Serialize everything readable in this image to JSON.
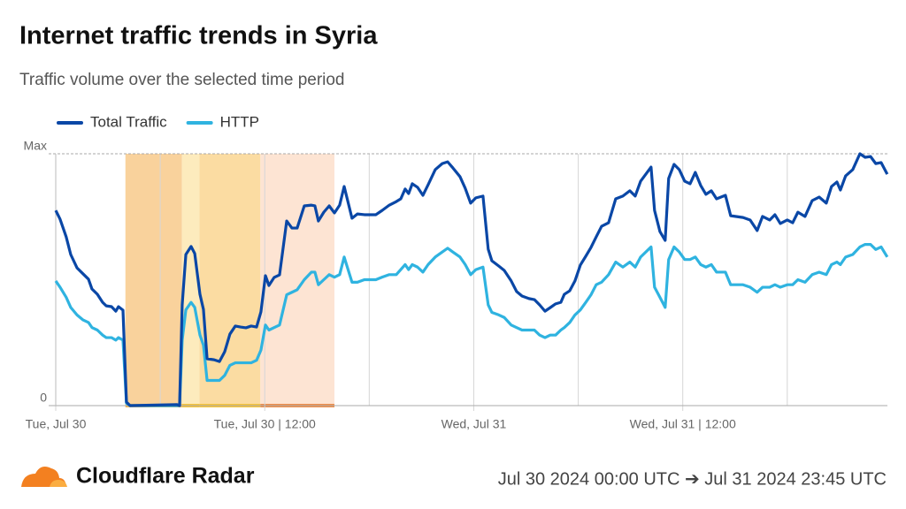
{
  "chart_data": {
    "type": "line",
    "title": "Internet traffic trends in Syria",
    "subtitle": "Traffic volume over the selected time period",
    "brand": "Cloudflare Radar",
    "date_range": "Jul 30 2024 00:00 UTC ➔ Jul 31 2024 23:45 UTC",
    "legend": "top-left",
    "xlim": [
      0,
      47.75
    ],
    "xticks": [
      {
        "value": 0,
        "label": "Tue, Jul 30"
      },
      {
        "value": 12,
        "label": "Tue, Jul 30 | 12:00"
      },
      {
        "value": 24,
        "label": "Wed, Jul 31"
      },
      {
        "value": 36,
        "label": "Wed, Jul 31 | 12:00"
      }
    ],
    "xminorticks": [
      6,
      18,
      30,
      42
    ],
    "ylim": [
      0,
      100
    ],
    "yticks": [
      0,
      {
        "value": 100,
        "label": "Max"
      }
    ],
    "shaded_ranges": [
      {
        "start": 4,
        "end": 7.25,
        "color": "#f9d29c",
        "bar_color": "#f5b552"
      },
      {
        "start": 7.25,
        "end": 8.25,
        "color": "#fdebbd",
        "bar_color": "#f6c43a"
      },
      {
        "start": 8.25,
        "end": 11.75,
        "color": "#fbdca2",
        "bar_color": "#f6c43a"
      },
      {
        "start": 11.75,
        "end": 16,
        "color": "#fde4d3",
        "bar_color": "#ef8e4a"
      }
    ],
    "x": [
      0,
      0.25,
      0.6,
      0.86,
      1.22,
      1.57,
      1.88,
      2.08,
      2.39,
      2.69,
      2.9,
      3.2,
      3.45,
      3.6,
      3.86,
      4.06,
      4.27,
      6.96,
      7.11,
      7.26,
      7.47,
      7.77,
      7.98,
      8.28,
      8.48,
      8.69,
      9.09,
      9.4,
      9.7,
      10,
      10.31,
      10.61,
      10.92,
      11.22,
      11.53,
      11.78,
      12.04,
      12.24,
      12.54,
      12.85,
      13.26,
      13.56,
      13.86,
      14.27,
      14.68,
      14.88,
      15.08,
      15.39,
      15.7,
      16,
      16.3,
      16.56,
      17.01,
      17.32,
      17.72,
      18.38,
      18.74,
      19.15,
      19.55,
      19.81,
      20.06,
      20.26,
      20.47,
      20.77,
      21.08,
      21.38,
      21.79,
      22.19,
      22.5,
      22.8,
      23.21,
      23.51,
      23.82,
      24.12,
      24.53,
      24.83,
      25.04,
      25.44,
      25.75,
      26.15,
      26.46,
      26.77,
      27.17,
      27.48,
      27.78,
      28.09,
      28.39,
      28.7,
      29,
      29.2,
      29.51,
      29.81,
      30.12,
      30.43,
      30.73,
      31.03,
      31.34,
      31.74,
      32.15,
      32.56,
      32.96,
      33.27,
      33.58,
      33.88,
      34.18,
      34.38,
      34.69,
      34.99,
      35.19,
      35.5,
      35.8,
      36.11,
      36.42,
      36.72,
      37.03,
      37.33,
      37.64,
      37.94,
      38.45,
      38.75,
      39.46,
      39.87,
      40.27,
      40.58,
      40.99,
      41.29,
      41.6,
      42,
      42.31,
      42.61,
      43.02,
      43.43,
      43.83,
      44.24,
      44.54,
      44.85,
      45.05,
      45.35,
      45.76,
      46.17,
      46.47,
      46.78,
      47.08,
      47.39,
      47.74
    ],
    "series": [
      {
        "name": "Total Traffic",
        "color": "#0a47a6",
        "values": [
          77.5,
          74,
          67,
          60,
          54.7,
          52.3,
          50.2,
          46.3,
          44.2,
          41,
          39.6,
          39.3,
          37.5,
          39.3,
          37.9,
          1.4,
          0,
          0.4,
          0,
          40,
          60,
          63.2,
          60.4,
          44.2,
          38.2,
          18.6,
          18.2,
          17.5,
          21.4,
          28.4,
          31.6,
          31.2,
          30.9,
          31.6,
          31.2,
          37.2,
          51.6,
          47.7,
          50.9,
          51.9,
          73.3,
          70.5,
          70.5,
          79.3,
          79.6,
          79.3,
          73.3,
          76.8,
          79.3,
          76.5,
          79.6,
          87,
          74.4,
          76.1,
          75.8,
          75.8,
          77.5,
          79.6,
          81,
          82.1,
          86,
          84.2,
          88.1,
          86.7,
          83.5,
          87.7,
          93.7,
          96.1,
          96.8,
          94.4,
          90.9,
          86.3,
          80.4,
          82.5,
          83.2,
          62.1,
          57.5,
          55.4,
          53.7,
          49.5,
          45.3,
          43.5,
          42.5,
          42.1,
          40,
          37.5,
          38.9,
          40.4,
          41,
          44.2,
          45.6,
          49.5,
          55.8,
          59.3,
          62.8,
          67,
          71.2,
          72.6,
          82.1,
          83.2,
          85.3,
          83.2,
          89.1,
          91.9,
          94.7,
          77.5,
          69.1,
          65.6,
          90.2,
          95.8,
          93.7,
          89.1,
          88.1,
          92.6,
          87.4,
          83.9,
          85.3,
          82.1,
          83.5,
          75.4,
          74.7,
          73.7,
          69.5,
          75.1,
          73.7,
          75.8,
          72.3,
          73.7,
          72.6,
          76.8,
          75.1,
          81.4,
          82.8,
          80.4,
          87,
          88.8,
          85.6,
          91.2,
          93.7,
          100,
          98.6,
          98.9,
          96.1,
          96.5,
          91.9
        ]
      },
      {
        "name": "HTTP",
        "color": "#2fb3e0",
        "values": [
          49.5,
          47,
          43,
          39,
          36,
          34,
          33,
          31,
          30,
          28,
          27,
          27,
          26,
          27,
          26,
          1,
          0,
          0,
          0,
          26,
          38,
          41,
          39,
          28,
          24,
          10,
          10,
          10,
          12,
          16,
          17,
          17,
          17,
          17,
          18,
          22,
          32,
          30,
          31,
          32,
          44,
          45,
          46,
          50,
          53,
          53,
          48,
          50,
          52,
          51,
          52,
          59,
          49,
          49,
          50,
          50,
          51,
          52,
          52,
          54,
          56,
          54,
          56,
          55,
          53,
          56,
          59,
          61,
          62.5,
          61,
          59,
          56,
          52,
          54,
          55,
          40,
          37,
          36,
          35,
          32,
          31,
          30,
          30,
          30,
          28,
          27,
          28,
          28,
          30,
          31,
          33,
          36,
          38,
          41,
          44,
          48,
          49,
          52,
          57,
          55,
          57,
          55,
          59,
          61,
          63,
          47,
          43,
          39,
          58,
          63,
          61,
          58,
          58,
          59,
          56,
          55,
          56,
          53,
          53,
          48,
          48,
          47,
          45,
          47,
          47,
          48,
          47,
          48,
          48,
          50,
          49,
          52,
          53,
          52,
          56,
          57,
          56,
          59,
          60,
          63,
          64,
          64,
          62,
          63,
          59
        ]
      }
    ]
  }
}
